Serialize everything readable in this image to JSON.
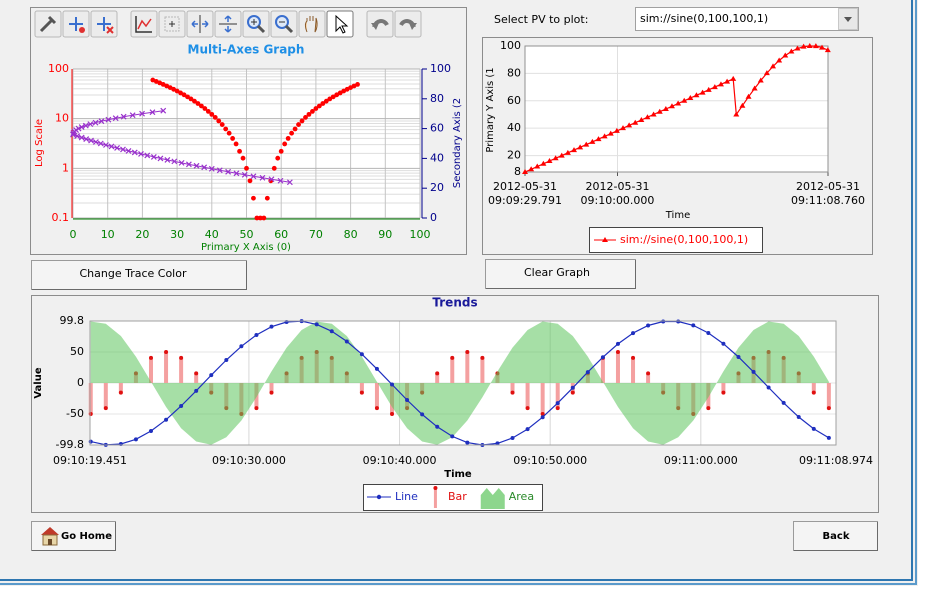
{
  "ui": {
    "select_label": "Select PV to plot:",
    "pv_selected": "sim://sine(0,100,100,1)",
    "buttons": [
      "Change Trace Color",
      "Clear Graph",
      "Go Home",
      "Back"
    ]
  },
  "chart_data": [
    {
      "type": "scatter",
      "title": "Multi-Axes Graph",
      "title_color": "#1e8fe6",
      "x_label": "Primary X Axis (0)",
      "y_label": "Log Scale",
      "y2_label": "Secondary Axis (2",
      "xlim": [
        0,
        100
      ],
      "xticks": [
        0,
        10,
        20,
        30,
        40,
        50,
        60,
        70,
        80,
        90,
        100
      ],
      "ylim": [
        0.1,
        100
      ],
      "yticks": [
        0.1,
        1,
        10,
        100
      ],
      "y_minor_ticks": [
        0.2,
        0.3,
        0.4,
        0.5,
        0.6,
        0.7,
        0.8,
        0.9,
        2,
        3,
        4,
        5,
        6,
        7,
        8,
        9,
        20,
        30,
        40,
        50,
        60,
        70,
        80,
        90
      ],
      "log_y": true,
      "y2lim": [
        0,
        100
      ],
      "y2ticks": [
        0,
        20,
        40,
        60,
        80,
        100
      ],
      "grid": true,
      "x_axis_color": "#008000",
      "y_axis_color": "#ff0000",
      "y2_axis_color": "#00008b",
      "series": [
        {
          "color": "#ff0000",
          "marker": "dot",
          "x": [
            23,
            24,
            25,
            26,
            27,
            28,
            29,
            30,
            31,
            32,
            33,
            34,
            35,
            36,
            37,
            38,
            39,
            40,
            41,
            42,
            43,
            44,
            45,
            46,
            47,
            48,
            49,
            50,
            51,
            52,
            53,
            54,
            55,
            56,
            57,
            58,
            59,
            60,
            61,
            62,
            63,
            64,
            65,
            66,
            67,
            68,
            69,
            70,
            71,
            72,
            73,
            74,
            75,
            76,
            77,
            78,
            79,
            80,
            81,
            82
          ],
          "values": [
            60,
            56.2,
            52.5,
            49.0,
            45.5,
            42.2,
            39.0,
            36.0,
            33.0,
            30.2,
            27.5,
            25.0,
            22.5,
            20.2,
            18.0,
            16.0,
            14.0,
            12.2,
            10.6,
            9.0,
            7.6,
            6.2,
            5.1,
            4.0,
            3.1,
            2.2,
            1.6,
            1.0,
            0.56,
            0.25,
            0.1,
            0.1,
            0.1,
            0.25,
            0.56,
            1.0,
            1.6,
            2.2,
            3.1,
            4.0,
            5.1,
            6.2,
            7.6,
            9.0,
            10.6,
            12.2,
            14.0,
            16.0,
            18.0,
            20.2,
            22.5,
            25.0,
            27.5,
            30.2,
            33.0,
            36.0,
            39.0,
            42.2,
            45.5,
            49.0
          ]
        },
        {
          "color": "#9932cc",
          "marker": "cross",
          "axis": "y2",
          "x": [
            26.0,
            22.9,
            19.9,
            17.2,
            14.6,
            12.3,
            10.2,
            8.2,
            6.5,
            5.0,
            3.7,
            2.5,
            1.6,
            0.9,
            0.4,
            0.1,
            0,
            1.2,
            2.5,
            3.8,
            5.2,
            6.6,
            8.0,
            9.5,
            11.1,
            12.7,
            14.4,
            16.0,
            17.8,
            19.6,
            21.4,
            23.3,
            25.2,
            27.2,
            29.2,
            31.3,
            33.4,
            35.6,
            37.8,
            40.0,
            42.3,
            44.7,
            47.1,
            49.5,
            52.0,
            54.6,
            57.2,
            59.8,
            62.5
          ],
          "values": [
            72,
            71,
            70,
            69,
            68,
            67,
            66,
            65,
            64,
            63,
            62,
            61,
            60,
            59,
            58,
            57,
            56,
            55,
            54,
            53,
            52,
            51,
            50,
            49,
            48,
            47,
            46,
            45,
            44,
            43,
            42,
            41,
            40,
            39,
            38,
            37,
            36,
            35,
            34,
            33,
            32,
            31,
            30,
            29,
            28,
            27,
            26,
            25,
            24
          ]
        }
      ]
    },
    {
      "type": "line",
      "x_label": "Time",
      "y_label": "Primary Y Axis (1",
      "xlim": [
        29.791,
        128.76
      ],
      "xticks": [
        {
          "value": 29.791,
          "label": [
            "2012-05-31",
            "09:09:29.791"
          ]
        },
        {
          "value": 60,
          "label": [
            "2012-05-31",
            "09:10:00.000"
          ]
        },
        {
          "value": 128.76,
          "label": [
            "2012-05-31",
            "09:11:08.760"
          ]
        }
      ],
      "ylim": [
        8,
        100
      ],
      "yticks": [
        8,
        20,
        40,
        60,
        80,
        100
      ],
      "grid": true,
      "legend": "bottom",
      "series": [
        {
          "name": "sim://sine(0,100,100,1)",
          "color": "#ff0000",
          "marker": "triangle",
          "x": [
            29.8,
            31.8,
            33.8,
            35.8,
            37.8,
            39.8,
            41.8,
            43.8,
            45.8,
            47.8,
            49.8,
            51.8,
            53.8,
            55.8,
            57.8,
            59.8,
            61.8,
            63.8,
            65.8,
            67.8,
            69.8,
            71.8,
            73.8,
            75.8,
            77.8,
            79.8,
            81.8,
            83.8,
            85.8,
            87.8,
            89.8,
            91.8,
            93.8,
            95.8,
            97.8,
            98.8,
            100.8,
            102.8,
            104.8,
            106.8,
            108.8,
            110.8,
            112.8,
            114.8,
            116.8,
            118.8,
            120.8,
            122.8,
            124.8,
            126.8,
            128.7
          ],
          "values": [
            8,
            10,
            12,
            14,
            16,
            18,
            20,
            22,
            24,
            26,
            28,
            30,
            32,
            34,
            36,
            38,
            40,
            42,
            44,
            46,
            48,
            50,
            52,
            54,
            56,
            58,
            60,
            62,
            64,
            66,
            68,
            70,
            72,
            74,
            76,
            50,
            56.4,
            62.9,
            69.0,
            74.8,
            80.2,
            85.1,
            89.4,
            93.1,
            96.0,
            98.2,
            99.5,
            100,
            99.9,
            98.8,
            97
          ]
        }
      ]
    },
    {
      "type": "combo",
      "title": "Trends",
      "title_color": "#1a1a9a",
      "x_label": "Time",
      "y_label": "Value",
      "xlim": [
        19.451,
        68.974
      ],
      "xticks": [
        {
          "value": 19.451,
          "label": "09:10:19.451"
        },
        {
          "value": 30,
          "label": "09:10:30.000"
        },
        {
          "value": 40,
          "label": "09:10:40.000"
        },
        {
          "value": 50,
          "label": "09:10:50.000"
        },
        {
          "value": 60,
          "label": "09:11:00.000"
        },
        {
          "value": 68.974,
          "label": "09:11:08.974"
        }
      ],
      "ylim": [
        -99.8,
        99.8
      ],
      "yticks": [
        99.8,
        50,
        0,
        -50,
        -99.8
      ],
      "grid": true,
      "legend": "bottom",
      "x": [
        19.5,
        20.5,
        21.5,
        22.5,
        23.5,
        24.5,
        25.5,
        26.5,
        27.5,
        28.5,
        29.5,
        30.5,
        31.5,
        32.5,
        33.5,
        34.5,
        35.5,
        36.5,
        37.5,
        38.5,
        39.5,
        40.5,
        41.5,
        42.5,
        43.5,
        44.5,
        45.5,
        46.5,
        47.5,
        48.5,
        49.5,
        50.5,
        51.5,
        52.5,
        53.5,
        54.5,
        55.5,
        56.5,
        57.5,
        58.5,
        59.5,
        60.5,
        61.5,
        62.5,
        63.5,
        64.5,
        65.5,
        66.5,
        67.5,
        68.5
      ],
      "series": [
        {
          "name": "Line",
          "type": "line",
          "color": "#1f2fbf",
          "values": [
            -94.4,
            -99.5,
            -98.2,
            -90.7,
            -77.3,
            -59.1,
            -37.0,
            -12.6,
            12.6,
            37.0,
            59.1,
            77.3,
            90.7,
            98.2,
            99.5,
            94.4,
            83.3,
            66.9,
            46.3,
            22.7,
            -2.4,
            -27.3,
            -50.5,
            -70.5,
            -86.0,
            -95.9,
            -99.8,
            -97.2,
            -88.5,
            -74.2,
            -55.1,
            -32.3,
            -7.7,
            17.5,
            41.5,
            63.0,
            80.3,
            92.6,
            99.0,
            99.0,
            92.7,
            80.5,
            63.2,
            41.8,
            17.9,
            -7.3,
            -32.0,
            -54.7,
            -73.9,
            -88.3
          ]
        },
        {
          "name": "Bar",
          "type": "bar",
          "color": "#f4a0a0",
          "marker_color": "#e01010",
          "values": [
            -50,
            -40.5,
            -15.5,
            15.5,
            40.5,
            50,
            40.5,
            15.5,
            -15.5,
            -40.5,
            -50,
            -40.5,
            -15.5,
            15.5,
            40.5,
            50,
            40.5,
            15.5,
            -15.5,
            -40.5,
            -50,
            -40.5,
            -15.5,
            15.5,
            40.5,
            50,
            40.5,
            15.5,
            -15.5,
            -40.5,
            -50,
            -40.5,
            -15.5,
            15.5,
            40.5,
            50,
            40.5,
            15.5,
            -15.5,
            -40.5,
            -50,
            -40.5,
            -15.5,
            15.5,
            40.5,
            50,
            40.5,
            15.5,
            -15.5,
            -40.5
          ]
        },
        {
          "name": "Area",
          "type": "area",
          "color": "#5cc45c",
          "values": [
            99.0,
            95.5,
            75.6,
            42.5,
            2.1,
            -38.7,
            -72.8,
            -94.2,
            -99.5,
            -87.4,
            -60.4,
            -22.8,
            18.7,
            57.0,
            85.3,
            99.0,
            95.5,
            75.6,
            42.5,
            2.1,
            -38.7,
            -72.8,
            -94.2,
            -99.5,
            -87.4,
            -60.4,
            -22.8,
            18.7,
            57.0,
            85.3,
            99.0,
            95.5,
            75.6,
            42.5,
            2.1,
            -38.7,
            -72.8,
            -94.2,
            -99.5,
            -87.4,
            -60.4,
            -22.8,
            18.7,
            57.0,
            85.3,
            99.0,
            95.5,
            75.6,
            42.5,
            2.1
          ]
        }
      ]
    }
  ]
}
